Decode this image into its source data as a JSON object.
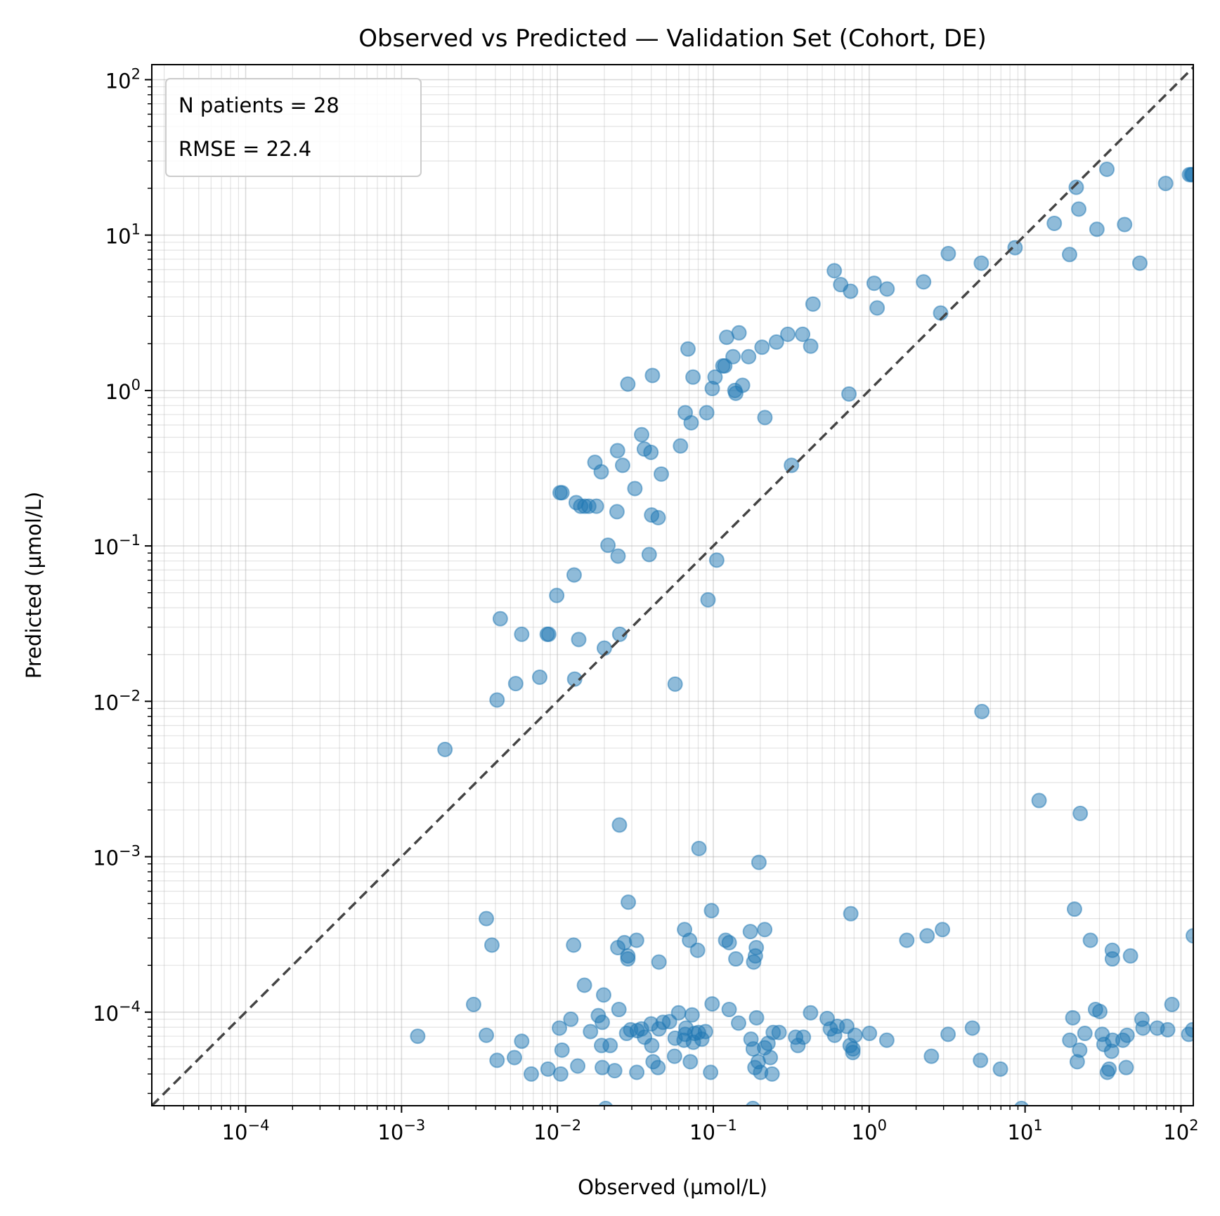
{
  "chart_data": {
    "type": "scatter",
    "title": "Observed vs Predicted — Validation Set (Cohort, DE)",
    "xlabel": "Observed (µmol/L)",
    "ylabel": "Predicted (µmol/L)",
    "xscale": "log",
    "yscale": "log",
    "xlim": [
      2.5e-05,
      120
    ],
    "ylim": [
      2.5e-05,
      125
    ],
    "x_ticks": [
      0.0001,
      0.001,
      0.01,
      0.1,
      1,
      10,
      100
    ],
    "x_tick_labels": [
      {
        "base": "10",
        "exp": "−4"
      },
      {
        "base": "10",
        "exp": "−3"
      },
      {
        "base": "10",
        "exp": "−2"
      },
      {
        "base": "10",
        "exp": "−1"
      },
      {
        "base": "10",
        "exp": "0"
      },
      {
        "base": "10",
        "exp": "1"
      },
      {
        "base": "10",
        "exp": "2"
      }
    ],
    "y_ticks": [
      0.0001,
      0.001,
      0.01,
      0.1,
      1,
      10,
      100
    ],
    "y_tick_labels": [
      {
        "base": "10",
        "exp": "−4"
      },
      {
        "base": "10",
        "exp": "−3"
      },
      {
        "base": "10",
        "exp": "−2"
      },
      {
        "base": "10",
        "exp": "−1"
      },
      {
        "base": "10",
        "exp": "0"
      },
      {
        "base": "10",
        "exp": "1"
      },
      {
        "base": "10",
        "exp": "2"
      }
    ],
    "grid": true,
    "legend_placement": "top-left",
    "annotations": [
      "N patients = 28",
      "RMSE = 22.4"
    ],
    "marker_color": "#1f77b4",
    "reference_line": {
      "type": "identity",
      "color": "#444444",
      "style": "dashed"
    },
    "series": [
      {
        "points": [
          [
            0.0019,
            0.0049
          ],
          [
            0.0041,
            0.0102
          ],
          [
            0.0043,
            0.034
          ],
          [
            0.0054,
            0.013
          ],
          [
            0.0059,
            0.027
          ],
          [
            0.0077,
            0.0143
          ],
          [
            0.0086,
            0.027
          ],
          [
            0.0088,
            0.027
          ],
          [
            0.0099,
            0.048
          ],
          [
            0.0104,
            0.22
          ],
          [
            0.0107,
            0.22
          ],
          [
            0.0128,
            0.065
          ],
          [
            0.0129,
            0.0139
          ],
          [
            0.0132,
            0.19
          ],
          [
            0.0137,
            0.025
          ],
          [
            0.0141,
            0.18
          ],
          [
            0.015,
            0.18
          ],
          [
            0.0159,
            0.18
          ],
          [
            0.0174,
            0.345
          ],
          [
            0.0178,
            0.18
          ],
          [
            0.0191,
            0.3
          ],
          [
            0.02,
            0.022
          ],
          [
            0.0211,
            0.101
          ],
          [
            0.0241,
            0.166
          ],
          [
            0.0243,
            0.41
          ],
          [
            0.0245,
            0.086
          ],
          [
            0.0251,
            0.027
          ],
          [
            0.0262,
            0.33
          ],
          [
            0.0283,
            1.1
          ],
          [
            0.0314,
            0.234
          ],
          [
            0.0347,
            0.52
          ],
          [
            0.0361,
            0.42
          ],
          [
            0.0388,
            0.088
          ],
          [
            0.0398,
            0.4
          ],
          [
            0.0402,
            0.158
          ],
          [
            0.0407,
            1.25
          ],
          [
            0.0443,
            0.152
          ],
          [
            0.0464,
            0.29
          ],
          [
            0.0569,
            0.0129
          ],
          [
            0.0616,
            0.44
          ],
          [
            0.0661,
            0.72
          ],
          [
            0.0688,
            1.85
          ],
          [
            0.0721,
            0.62
          ],
          [
            0.0741,
            1.22
          ],
          [
            0.0907,
            0.72
          ],
          [
            0.0925,
            0.045
          ],
          [
            0.0985,
            1.03
          ],
          [
            0.1026,
            1.22
          ],
          [
            0.1052,
            0.081
          ],
          [
            0.1151,
            1.44
          ],
          [
            0.1185,
            1.44
          ],
          [
            0.1218,
            2.2
          ],
          [
            0.1339,
            1.65
          ],
          [
            0.1375,
            1.0
          ],
          [
            0.1394,
            0.96
          ],
          [
            0.1462,
            2.35
          ],
          [
            0.1541,
            1.08
          ],
          [
            0.1685,
            1.65
          ],
          [
            0.2054,
            1.9
          ],
          [
            0.2143,
            0.67
          ],
          [
            0.2541,
            2.05
          ],
          [
            0.3005,
            2.3
          ],
          [
            0.3171,
            0.33
          ],
          [
            0.3742,
            2.3
          ],
          [
            0.4216,
            1.93
          ],
          [
            0.4359,
            3.6
          ],
          [
            0.5973,
            5.9
          ],
          [
            0.6564,
            4.8
          ],
          [
            0.7419,
            0.95
          ],
          [
            0.7595,
            4.35
          ],
          [
            1.076,
            4.9
          ],
          [
            1.125,
            3.4
          ],
          [
            1.303,
            4.5
          ],
          [
            2.234,
            5.0
          ],
          [
            2.874,
            3.15
          ],
          [
            3.218,
            7.6
          ],
          [
            5.24,
            6.6
          ],
          [
            5.286,
            0.0086
          ],
          [
            8.63,
            8.3
          ],
          [
            12.3,
            0.0023
          ],
          [
            15.4,
            11.9
          ],
          [
            19.3,
            7.5
          ],
          [
            21.3,
            20.3
          ],
          [
            22.1,
            14.7
          ],
          [
            22.6,
            0.0019
          ],
          [
            28.9,
            10.9
          ],
          [
            33.5,
            26.5
          ],
          [
            43.5,
            11.7
          ],
          [
            54.5,
            6.6
          ],
          [
            79.8,
            21.5
          ],
          [
            113.4,
            24.5
          ],
          [
            116.7,
            24.5
          ],
          [
            118.9,
            24.5
          ],
          [
            120,
            0.00031
          ],
          [
            0.0035,
            0.0004
          ],
          [
            0.0038,
            0.00027
          ],
          [
            0.025,
            0.0016
          ],
          [
            0.0285,
            0.00051
          ],
          [
            0.0127,
            0.00027
          ],
          [
            0.0244,
            0.00026
          ],
          [
            0.0269,
            0.00028
          ],
          [
            0.0283,
            0.00022
          ],
          [
            0.0283,
            0.00023
          ],
          [
            0.0322,
            0.00029
          ],
          [
            0.0448,
            0.00021
          ],
          [
            0.0654,
            0.00034
          ],
          [
            0.0704,
            0.00029
          ],
          [
            0.0793,
            0.00025
          ],
          [
            0.0809,
            0.00113
          ],
          [
            0.0974,
            0.00045
          ],
          [
            0.12,
            0.00029
          ],
          [
            0.1265,
            0.00028
          ],
          [
            0.1395,
            0.00022
          ],
          [
            0.1728,
            0.00033
          ],
          [
            0.1815,
            0.00021
          ],
          [
            0.1862,
            0.00023
          ],
          [
            0.1887,
            0.00026
          ],
          [
            0.1962,
            0.00092
          ],
          [
            0.2137,
            0.00034
          ],
          [
            0.7621,
            0.00043
          ],
          [
            1.743,
            0.00029
          ],
          [
            2.353,
            0.00031
          ],
          [
            2.951,
            0.00034
          ],
          [
            20.75,
            0.00046
          ],
          [
            26.25,
            0.00029
          ],
          [
            36.31,
            0.00022
          ],
          [
            36.28,
            0.00025
          ],
          [
            47.46,
            0.00023
          ],
          [
            0.00127,
            7e-05
          ],
          [
            0.0029,
            0.000112
          ],
          [
            0.0035,
            7.1e-05
          ],
          [
            0.0041,
            4.9e-05
          ],
          [
            0.0053,
            5.1e-05
          ],
          [
            0.0059,
            6.5e-05
          ],
          [
            0.0068,
            4e-05
          ],
          [
            0.0087,
            4.3e-05
          ],
          [
            0.0103,
            7.9e-05
          ],
          [
            0.0105,
            4e-05
          ],
          [
            0.0107,
            5.7e-05
          ],
          [
            0.0122,
            9e-05
          ],
          [
            0.0135,
            4.5e-05
          ],
          [
            0.0149,
            0.000149
          ],
          [
            0.0163,
            7.5e-05
          ],
          [
            0.0183,
            9.5e-05
          ],
          [
            0.0192,
            6.1e-05
          ],
          [
            0.0194,
            8.6e-05
          ],
          [
            0.0194,
            4.4e-05
          ],
          [
            0.0198,
            0.000129
          ],
          [
            0.0204,
            2.4e-05
          ],
          [
            0.0218,
            6.1e-05
          ],
          [
            0.0233,
            4.2e-05
          ],
          [
            0.0248,
            0.000104
          ],
          [
            0.0278,
            7.3e-05
          ],
          [
            0.0295,
            7.7e-05
          ],
          [
            0.0325,
            7.6e-05
          ],
          [
            0.0323,
            4.1e-05
          ],
          [
            0.0346,
            7.8e-05
          ],
          [
            0.0362,
            6.9e-05
          ],
          [
            0.0399,
            8.4e-05
          ],
          [
            0.0403,
            6.1e-05
          ],
          [
            0.0411,
            4.8e-05
          ],
          [
            0.0442,
            4.4e-05
          ],
          [
            0.0448,
            7.8e-05
          ],
          [
            0.0476,
            8.6e-05
          ],
          [
            0.0524,
            8.7e-05
          ],
          [
            0.0564,
            5.2e-05
          ],
          [
            0.0569,
            6.8e-05
          ],
          [
            0.0599,
            9.9e-05
          ],
          [
            0.0649,
            6.6e-05
          ],
          [
            0.066,
            7.2e-05
          ],
          [
            0.0668,
            7.9e-05
          ],
          [
            0.0712,
            4.8e-05
          ],
          [
            0.0731,
            9.6e-05
          ],
          [
            0.0745,
            6.4e-05
          ],
          [
            0.0759,
            7.3e-05
          ],
          [
            0.0803,
            7.4e-05
          ],
          [
            0.0844,
            6.7e-05
          ],
          [
            0.0891,
            7.5e-05
          ],
          [
            0.0961,
            4.1e-05
          ],
          [
            0.0983,
            0.000113
          ],
          [
            0.1264,
            0.000104
          ],
          [
            0.1453,
            8.5e-05
          ],
          [
            0.1745,
            6.7e-05
          ],
          [
            0.1794,
            2.4e-05
          ],
          [
            0.1804,
            5.8e-05
          ],
          [
            0.1849,
            4.4e-05
          ],
          [
            0.1894,
            9.2e-05
          ],
          [
            0.1942,
            4.8e-05
          ],
          [
            0.2012,
            4.1e-05
          ],
          [
            0.2134,
            5.9e-05
          ],
          [
            0.2243,
            6.3e-05
          ],
          [
            0.2322,
            5.1e-05
          ],
          [
            0.2382,
            4e-05
          ],
          [
            0.2423,
            7.4e-05
          ],
          [
            0.2643,
            7.4e-05
          ],
          [
            0.3375,
            6.9e-05
          ],
          [
            0.3491,
            6.1e-05
          ],
          [
            0.3784,
            6.9e-05
          ],
          [
            0.4207,
            9.9e-05
          ],
          [
            0.5375,
            9.1e-05
          ],
          [
            0.5639,
            7.8e-05
          ],
          [
            0.6002,
            7.1e-05
          ],
          [
            0.6242,
            8.1e-05
          ],
          [
            0.7183,
            8.1e-05
          ],
          [
            0.7543,
            6.1e-05
          ],
          [
            0.7869,
            5.8e-05
          ],
          [
            0.7856,
            5.5e-05
          ],
          [
            0.8117,
            7.1e-05
          ],
          [
            1.004,
            7.3e-05
          ],
          [
            1.297,
            6.6e-05
          ],
          [
            2.507,
            5.2e-05
          ],
          [
            3.207,
            7.2e-05
          ],
          [
            4.592,
            7.9e-05
          ],
          [
            5.176,
            4.9e-05
          ],
          [
            6.948,
            4.3e-05
          ],
          [
            9.487,
            2.4e-05
          ],
          [
            19.35,
            6.6e-05
          ],
          [
            20.24,
            9.2e-05
          ],
          [
            21.61,
            4.8e-05
          ],
          [
            22.42,
            5.7e-05
          ],
          [
            24.19,
            7.3e-05
          ],
          [
            28.31,
            0.000104
          ],
          [
            30.18,
            0.000101
          ],
          [
            31.25,
            7.2e-05
          ],
          [
            32.06,
            6.2e-05
          ],
          [
            33.72,
            4.1e-05
          ],
          [
            34.61,
            4.3e-05
          ],
          [
            35.89,
            5.6e-05
          ],
          [
            36.43,
            6.6e-05
          ],
          [
            42.43,
            6.6e-05
          ],
          [
            44.52,
            4.4e-05
          ],
          [
            45.12,
            7.1e-05
          ],
          [
            56.21,
            9e-05
          ],
          [
            57.06,
            7.9e-05
          ],
          [
            70.46,
            7.9e-05
          ],
          [
            82.18,
            7.7e-05
          ],
          [
            87.52,
            0.000112
          ],
          [
            112.1,
            7.2e-05
          ],
          [
            118.9,
            7.7e-05
          ]
        ]
      }
    ]
  }
}
